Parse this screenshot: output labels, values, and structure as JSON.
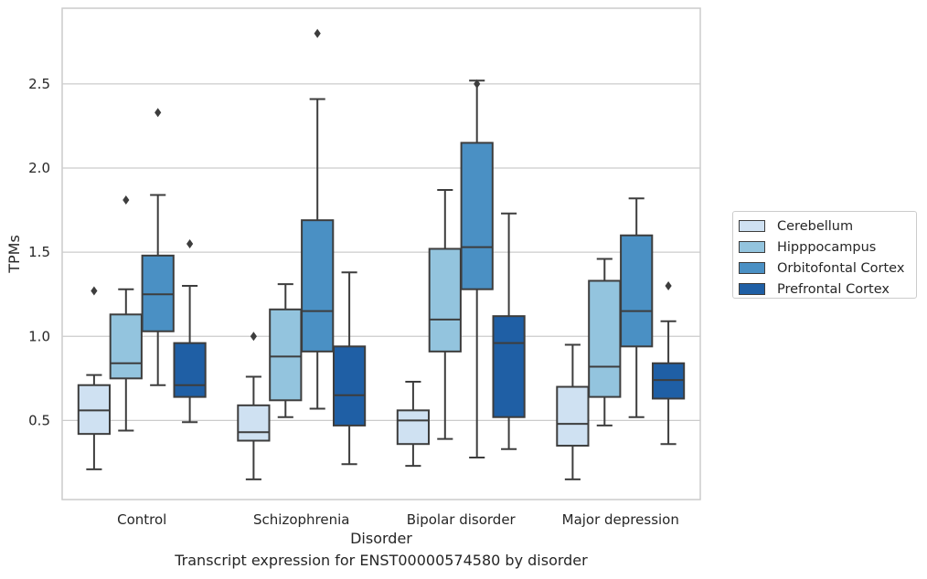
{
  "caption": "Transcript expression for ENST00000574580 by disorder",
  "chart_data": {
    "type": "box",
    "xlabel": "Disorder",
    "ylabel": "TPMs",
    "ylim": [
      0.03,
      2.95
    ],
    "yticks": [
      "0.5",
      "1.0",
      "1.5",
      "2.0",
      "2.5"
    ],
    "ytick_values": [
      0.5,
      1.0,
      1.5,
      2.0,
      2.5
    ],
    "grid": "horizontal",
    "legend_position": "right",
    "categories": [
      "Control",
      "Schizophrenia",
      "Bipolar disorder",
      "Major depression"
    ],
    "series": [
      {
        "name": "Cerebellum",
        "color": "#cfe1f2",
        "boxes": [
          {
            "whislo": 0.21,
            "q1": 0.42,
            "med": 0.56,
            "q3": 0.71,
            "whishi": 0.77,
            "fliers": [
              1.27
            ]
          },
          {
            "whislo": 0.15,
            "q1": 0.38,
            "med": 0.43,
            "q3": 0.59,
            "whishi": 0.76,
            "fliers": [
              1.0
            ]
          },
          {
            "whislo": 0.23,
            "q1": 0.36,
            "med": 0.5,
            "q3": 0.56,
            "whishi": 0.73,
            "fliers": []
          },
          {
            "whislo": 0.15,
            "q1": 0.35,
            "med": 0.48,
            "q3": 0.7,
            "whishi": 0.95,
            "fliers": []
          }
        ]
      },
      {
        "name": "Hipppocampus",
        "color": "#93c4de",
        "boxes": [
          {
            "whislo": 0.44,
            "q1": 0.75,
            "med": 0.84,
            "q3": 1.13,
            "whishi": 1.28,
            "fliers": [
              1.81
            ]
          },
          {
            "whislo": 0.52,
            "q1": 0.62,
            "med": 0.88,
            "q3": 1.16,
            "whishi": 1.31,
            "fliers": []
          },
          {
            "whislo": 0.39,
            "q1": 0.91,
            "med": 1.1,
            "q3": 1.52,
            "whishi": 1.87,
            "fliers": []
          },
          {
            "whislo": 0.47,
            "q1": 0.64,
            "med": 0.82,
            "q3": 1.33,
            "whishi": 1.46,
            "fliers": []
          }
        ]
      },
      {
        "name": "Orbitofontal Cortex",
        "color": "#4a90c4",
        "boxes": [
          {
            "whislo": 0.71,
            "q1": 1.03,
            "med": 1.25,
            "q3": 1.48,
            "whishi": 1.84,
            "fliers": [
              2.33
            ]
          },
          {
            "whislo": 0.57,
            "q1": 0.91,
            "med": 1.15,
            "q3": 1.69,
            "whishi": 2.41,
            "fliers": [
              2.8
            ]
          },
          {
            "whislo": 0.28,
            "q1": 1.28,
            "med": 1.53,
            "q3": 2.15,
            "whishi": 2.52,
            "fliers": [
              2.5
            ]
          },
          {
            "whislo": 0.52,
            "q1": 0.94,
            "med": 1.15,
            "q3": 1.6,
            "whishi": 1.82,
            "fliers": []
          }
        ]
      },
      {
        "name": "Prefrontal Cortex",
        "color": "#1f5fa5",
        "boxes": [
          {
            "whislo": 0.49,
            "q1": 0.64,
            "med": 0.71,
            "q3": 0.96,
            "whishi": 1.3,
            "fliers": [
              1.55
            ]
          },
          {
            "whislo": 0.24,
            "q1": 0.47,
            "med": 0.65,
            "q3": 0.94,
            "whishi": 1.38,
            "fliers": []
          },
          {
            "whislo": 0.33,
            "q1": 0.52,
            "med": 0.96,
            "q3": 1.12,
            "whishi": 1.73,
            "fliers": []
          },
          {
            "whislo": 0.36,
            "q1": 0.63,
            "med": 0.74,
            "q3": 0.84,
            "whishi": 1.09,
            "fliers": [
              1.3
            ]
          }
        ]
      }
    ]
  }
}
